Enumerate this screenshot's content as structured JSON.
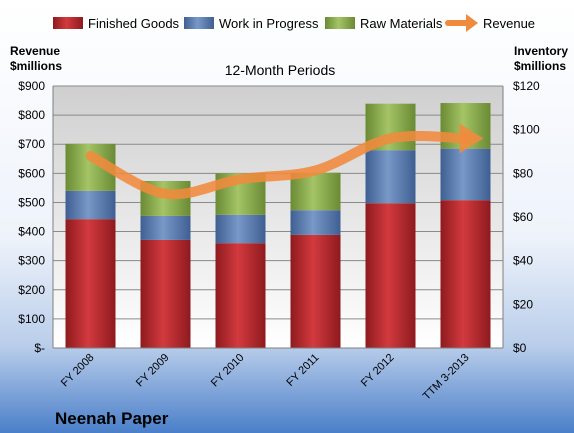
{
  "chart_data": {
    "type": "bar",
    "title": "12-Month Periods",
    "company": "Neenah Paper",
    "categories": [
      "FY 2008",
      "FY 2009",
      "FY 2010",
      "FY 2011",
      "FY 2012",
      "TTM 3-2013"
    ],
    "series": [
      {
        "name": "Finished Goods",
        "color": "#c0282d",
        "values": [
          59,
          49.5,
          48,
          51.8,
          66.3,
          67.7
        ]
      },
      {
        "name": "Work in Progress",
        "color": "#5a7fb5",
        "values": [
          13,
          11,
          13,
          11.3,
          24.3,
          23.6
        ]
      },
      {
        "name": "Raw Materials",
        "color": "#8fae4f",
        "values": [
          21.5,
          16,
          19,
          17.2,
          21.3,
          20.9
        ]
      }
    ],
    "line_series": {
      "name": "Revenue",
      "color": "#f08a3c",
      "values": [
        660,
        530,
        580,
        610,
        720,
        720
      ]
    },
    "y_left": {
      "label_line1": "Revenue",
      "label_line2": "$millions",
      "min": 0,
      "max": 900,
      "step": 100,
      "tick_labels": [
        "$-",
        "$100",
        "$200",
        "$300",
        "$400",
        "$500",
        "$600",
        "$700",
        "$800",
        "$900"
      ]
    },
    "y_right": {
      "label_line1": "Inventory",
      "label_line2": "$millions",
      "min": 0,
      "max": 120,
      "step": 20,
      "tick_labels": [
        "$0",
        "$20",
        "$40",
        "$60",
        "$80",
        "$100",
        "$120"
      ]
    },
    "grid": true,
    "legend_position": "top"
  }
}
